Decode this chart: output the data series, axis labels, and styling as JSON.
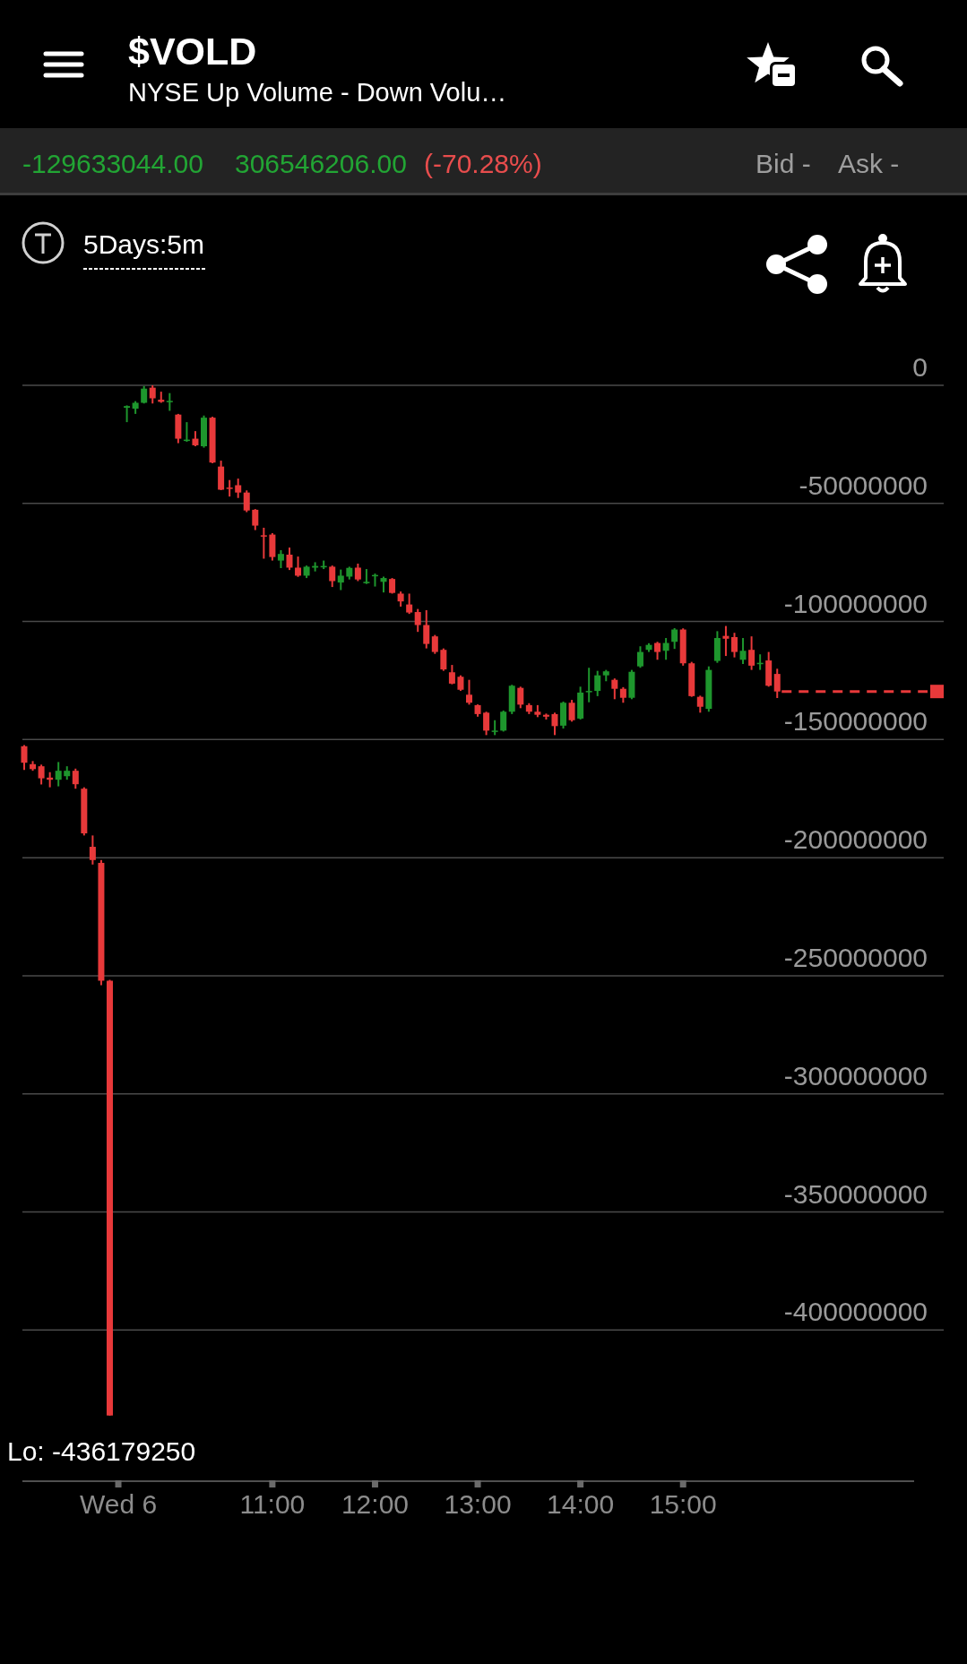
{
  "chart_data": {
    "type": "candlestick",
    "title": "$VOLD",
    "subtitle": "NYSE Up Volume - Down Volu…",
    "categories": [
      null,
      null,
      null,
      null,
      null,
      null,
      null,
      null,
      null,
      null,
      null,
      "Wed 6",
      null,
      null,
      null,
      null,
      null,
      null,
      null,
      null,
      null,
      null,
      null,
      null,
      null,
      null,
      null,
      null,
      null,
      "11:00",
      null,
      null,
      null,
      null,
      null,
      null,
      null,
      null,
      null,
      null,
      null,
      "12:00",
      null,
      null,
      null,
      null,
      null,
      null,
      null,
      null,
      null,
      null,
      null,
      "13:00",
      null,
      null,
      null,
      null,
      null,
      null,
      null,
      null,
      null,
      null,
      null,
      "14:00",
      null,
      null,
      null,
      null,
      null,
      null,
      null,
      null,
      null,
      null,
      null,
      "15:00",
      null,
      null,
      null,
      null,
      null,
      null,
      null,
      null,
      null,
      null,
      null,
      null,
      null,
      null,
      null,
      null,
      null,
      null,
      null,
      null,
      null,
      null,
      null,
      null,
      null,
      null,
      null
    ],
    "ohlc": [
      [
        -152800000,
        -152300000,
        -162900000,
        -159800000
      ],
      [
        -160400000,
        -159100000,
        -163200000,
        -162500000
      ],
      [
        -161300000,
        -160600000,
        -169000000,
        -166400000
      ],
      [
        -166100000,
        -163800000,
        -170200000,
        -167000000
      ],
      [
        -167000000,
        -159500000,
        -169800000,
        -163200000
      ],
      [
        -165500000,
        -161300000,
        -167000000,
        -163200000
      ],
      [
        -163200000,
        -162300000,
        -170800000,
        -168900000
      ],
      [
        -170800000,
        -170200000,
        -190600000,
        -189700000
      ],
      [
        -195400000,
        -190600000,
        -202900000,
        -201000000
      ],
      [
        -202200000,
        -201000000,
        -254000000,
        -252100000
      ],
      [
        -252100000,
        -251700000,
        -436179250,
        -436179250
      ],
      null,
      [
        -9500000,
        -8500000,
        -15600000,
        -8800000
      ],
      [
        -9900000,
        -6700000,
        -12100000,
        -7400000
      ],
      [
        -7400000,
        -300000,
        -7700000,
        -1400000
      ],
      [
        -1000000,
        0,
        -7700000,
        -5500000
      ],
      [
        -6100000,
        -2700000,
        -7400000,
        -7000000
      ],
      [
        -7000000,
        -3300000,
        -10800000,
        -6600000
      ],
      [
        -12400000,
        -12100000,
        -24500000,
        -22600000
      ],
      [
        -23500000,
        -15600000,
        -23900000,
        -23000000
      ],
      [
        -22600000,
        -19400000,
        -25800000,
        -25400000
      ],
      [
        -25800000,
        -12800000,
        -26400000,
        -13700000
      ],
      [
        -13700000,
        -13300000,
        -33000000,
        -32700000
      ],
      [
        -34400000,
        -31900000,
        -44400000,
        -44200000
      ],
      [
        -43300000,
        -40100000,
        -47100000,
        -43800000
      ],
      [
        -42300000,
        -39500000,
        -47700000,
        -45400000
      ],
      [
        -45400000,
        -44500000,
        -53700000,
        -53000000
      ],
      [
        -52700000,
        -52400000,
        -61300000,
        -59400000
      ],
      [
        -63500000,
        -60300000,
        -73400000,
        -63800000
      ],
      [
        -63200000,
        -62600000,
        -74200000,
        -72700000
      ],
      [
        -74200000,
        -69800000,
        -77400000,
        -71400000
      ],
      [
        -71700000,
        -68700000,
        -78200000,
        -77200000
      ],
      [
        -77200000,
        -72500000,
        -81100000,
        -80600000
      ],
      [
        -80600000,
        -76300000,
        -81600000,
        -76800000
      ],
      [
        -77200000,
        -74900000,
        -78800000,
        -76500000
      ],
      [
        -76900000,
        -74200000,
        -77800000,
        -76500000
      ],
      [
        -76800000,
        -76300000,
        -85400000,
        -82900000
      ],
      [
        -83500000,
        -78000000,
        -86700000,
        -80600000
      ],
      [
        -81000000,
        -76800000,
        -82200000,
        -77300000
      ],
      [
        -77200000,
        -75500000,
        -82900000,
        -82200000
      ],
      [
        -83800000,
        -77800000,
        -84100000,
        -83200000
      ],
      [
        -80800000,
        -79700000,
        -85200000,
        -80300000
      ],
      [
        -83200000,
        -81000000,
        -87700000,
        -81600000
      ],
      [
        -82000000,
        -81600000,
        -88200000,
        -87900000
      ],
      [
        -88200000,
        -87300000,
        -93700000,
        -91500000
      ],
      [
        -92800000,
        -88200000,
        -96800000,
        -96200000
      ],
      [
        -96000000,
        -94700000,
        -104400000,
        -101500000
      ],
      [
        -101500000,
        -95200000,
        -111400000,
        -109500000
      ],
      [
        -106300000,
        -105700000,
        -113700000,
        -112900000
      ],
      [
        -112000000,
        -111400000,
        -120900000,
        -120300000
      ],
      [
        -121500000,
        -118400000,
        -126600000,
        -126300000
      ],
      [
        -123400000,
        -122800000,
        -129400000,
        -128900000
      ],
      [
        -131000000,
        -124700000,
        -135200000,
        -134400000
      ],
      [
        -135400000,
        -135100000,
        -140300000,
        -139200000
      ],
      [
        -138600000,
        -138200000,
        -148100000,
        -146200000
      ],
      [
        -146600000,
        -141800000,
        -148100000,
        -146200000
      ],
      [
        -146200000,
        -137700000,
        -146600000,
        -138200000
      ],
      [
        -138200000,
        -126800000,
        -139200000,
        -127200000
      ],
      [
        -128100000,
        -127600000,
        -136700000,
        -135200000
      ],
      [
        -135400000,
        -134600000,
        -139200000,
        -138200000
      ],
      [
        -138200000,
        -135400000,
        -140500000,
        -139500000
      ],
      [
        -139500000,
        -139000000,
        -141500000,
        -140300000
      ],
      [
        -139200000,
        -138600000,
        -148100000,
        -144300000
      ],
      [
        -144100000,
        -133900000,
        -145300000,
        -134400000
      ],
      [
        -134400000,
        -133200000,
        -142400000,
        -141800000
      ],
      [
        -141100000,
        -127600000,
        -141500000,
        -130100000
      ],
      [
        -129800000,
        -119600000,
        -134200000,
        -129400000
      ],
      [
        -129400000,
        -120900000,
        -131600000,
        -122800000
      ],
      [
        -122800000,
        -120500000,
        -125300000,
        -121100000
      ],
      [
        -124700000,
        -124100000,
        -132900000,
        -128500000
      ],
      [
        -128500000,
        -127800000,
        -134400000,
        -132300000
      ],
      [
        -132300000,
        -120500000,
        -132900000,
        -121300000
      ],
      [
        -119000000,
        -110500000,
        -119600000,
        -112900000
      ],
      [
        -112000000,
        -109200000,
        -112900000,
        -109900000
      ],
      [
        -109100000,
        -108600000,
        -116200000,
        -112900000
      ],
      [
        -112400000,
        -107000000,
        -116200000,
        -109100000
      ],
      [
        -108600000,
        -102800000,
        -111600000,
        -103400000
      ],
      [
        -103400000,
        -102900000,
        -118700000,
        -117700000
      ],
      [
        -117700000,
        -117100000,
        -131900000,
        -131600000
      ],
      [
        -131900000,
        -131400000,
        -138600000,
        -136100000
      ],
      [
        -137000000,
        -119000000,
        -138200000,
        -120500000
      ],
      [
        -116700000,
        -104100000,
        -117500000,
        -107000000
      ],
      [
        -106100000,
        -101900000,
        -114600000,
        -107300000
      ],
      [
        -106600000,
        -104800000,
        -115200000,
        -112900000
      ],
      [
        -116200000,
        -107000000,
        -118000000,
        -112400000
      ],
      [
        -112000000,
        -106300000,
        -120500000,
        -118700000
      ],
      [
        -118000000,
        -113900000,
        -120500000,
        -117500000
      ],
      [
        -116500000,
        -112900000,
        -127600000,
        -127200000
      ],
      [
        -122200000,
        -120000000,
        -132400000,
        -129633044
      ],
      null,
      null,
      null,
      null,
      null,
      null,
      null,
      null,
      null,
      null,
      null,
      null,
      null,
      null,
      null,
      null
    ],
    "colors": [
      "#e8393a",
      "#e8393a",
      "#e8393a",
      "#e8393a",
      "#1e962d",
      "#1e962d",
      "#e8393a",
      "#e8393a",
      "#e8393a",
      "#e8393a",
      "#e8393a",
      null,
      "#1e962d",
      "#1e962d",
      "#1e962d",
      "#e8393a",
      "#e8393a",
      "#1e962d",
      "#e8393a",
      "#1e962d",
      "#e8393a",
      "#1e962d",
      "#e8393a",
      "#e8393a",
      "#e8393a",
      "#e8393a",
      "#e8393a",
      "#e8393a",
      "#e8393a",
      "#e8393a",
      "#1e962d",
      "#e8393a",
      "#e8393a",
      "#1e962d",
      "#1e962d",
      "#1e962d",
      "#e8393a",
      "#1e962d",
      "#1e962d",
      "#e8393a",
      "#1e962d",
      "#1e962d",
      "#1e962d",
      "#e8393a",
      "#e8393a",
      "#e8393a",
      "#e8393a",
      "#e8393a",
      "#e8393a",
      "#e8393a",
      "#e8393a",
      "#e8393a",
      "#e8393a",
      "#e8393a",
      "#e8393a",
      "#1e962d",
      "#1e962d",
      "#1e962d",
      "#e8393a",
      "#e8393a",
      "#e8393a",
      "#e8393a",
      "#e8393a",
      "#1e962d",
      "#e8393a",
      "#1e962d",
      "#1e962d",
      "#1e962d",
      "#1e962d",
      "#e8393a",
      "#e8393a",
      "#1e962d",
      "#1e962d",
      "#1e962d",
      "#e8393a",
      "#1e962d",
      "#1e962d",
      "#e8393a",
      "#e8393a",
      "#e8393a",
      "#1e962d",
      "#1e962d",
      "#e8393a",
      "#e8393a",
      "#1e962d",
      "#e8393a",
      "#1e962d",
      "#e8393a",
      "#e8393a",
      null,
      null,
      null,
      null,
      null,
      null,
      null,
      null,
      null,
      null,
      null,
      null,
      null,
      null,
      null,
      null
    ],
    "ylim": [
      -464000000,
      0
    ],
    "yticks": [
      0,
      -50000000,
      -100000000,
      -150000000,
      -200000000,
      -250000000,
      -300000000,
      -350000000,
      -400000000
    ],
    "grid": "y",
    "ref_lines": [
      {
        "axis": "y",
        "value": -129633044,
        "color": "#e8393a",
        "line_style": "dashed"
      }
    ],
    "annotations": [
      "-129633044.00",
      "306546206.00",
      "(-70.28%)",
      "Bid -",
      "Ask -",
      "5Days:5m",
      "Lo: -436179250"
    ]
  }
}
